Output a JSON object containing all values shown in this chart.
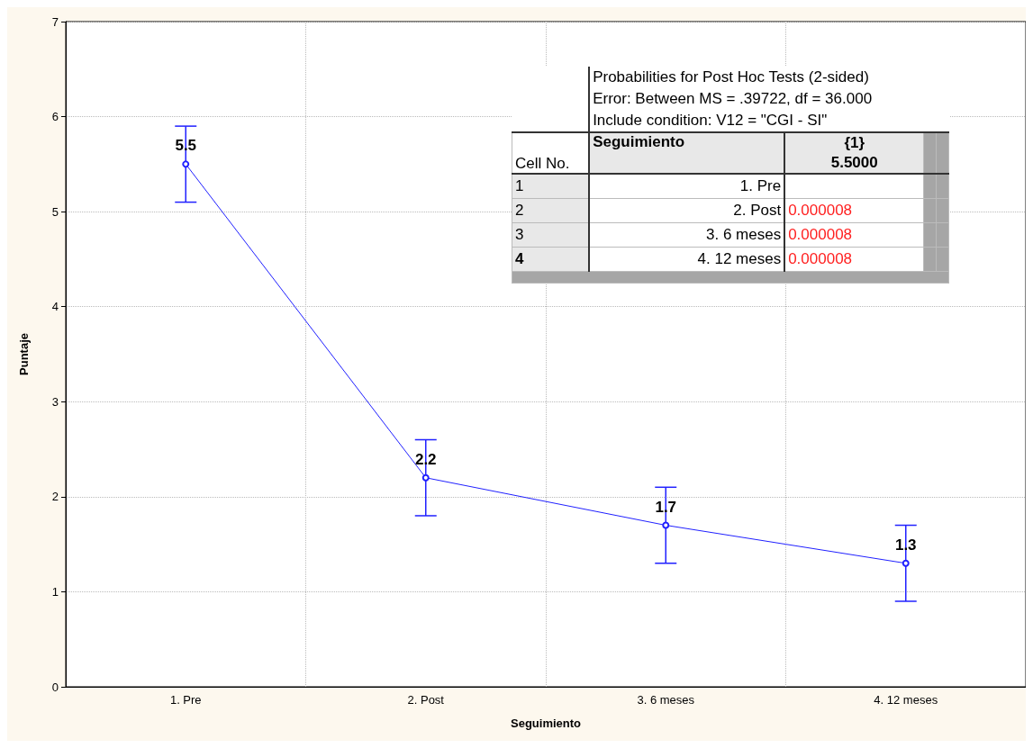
{
  "chart_data": {
    "type": "line",
    "xlabel": "Seguimiento",
    "ylabel": "Puntaje",
    "categories": [
      "1. Pre",
      "2. Post",
      "3. 6 meses",
      "4. 12 meses"
    ],
    "series": [
      {
        "color": "#2020ff",
        "values": [
          5.5,
          2.2,
          1.7,
          1.3
        ],
        "errors": [
          0.4,
          0.4,
          0.4,
          0.4
        ]
      }
    ],
    "ylim": [
      0,
      7
    ],
    "yticks": [
      0,
      1,
      2,
      3,
      4,
      5,
      6,
      7
    ],
    "grid": true,
    "marker": "circle",
    "line_style": "solid",
    "data_labels": true,
    "annotations": [
      "Probabilities for Post Hoc Tests (2-sided)",
      "Error: Between MS = .39722, df = 36.000",
      "Include condition: V12 = \"CGI - SI\"",
      "Cell No.",
      "Seguimiento",
      "{1}",
      "5.5000",
      "1",
      "1. Pre",
      "2",
      "2. Post",
      "0.000008",
      "3",
      "3. 6 meses",
      "0.000008",
      "4",
      "4. 12 meses",
      "0.000008"
    ]
  }
}
